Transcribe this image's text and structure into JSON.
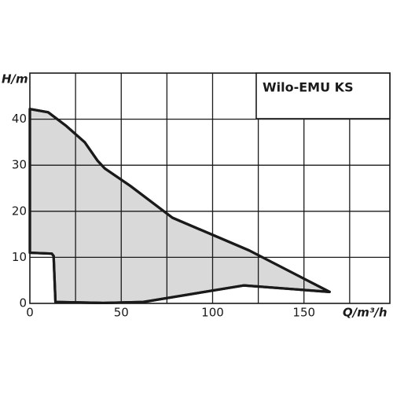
{
  "chart_data": {
    "type": "area",
    "title": "Wilo-EMU KS",
    "x_label": "Q/m³/h",
    "y_label": "H/m",
    "xlim": [
      0,
      197
    ],
    "ylim": [
      0,
      50
    ],
    "xticks": [
      0,
      50,
      100,
      150
    ],
    "yticks": [
      0,
      10,
      20,
      30,
      40
    ],
    "xgrid": [
      25,
      50,
      75,
      100,
      125,
      150,
      175
    ],
    "ygrid": [
      10,
      20,
      30,
      40
    ],
    "series": [
      {
        "name": "Wilo-EMU KS",
        "color": "#d9d9d9",
        "x": [
          0,
          10,
          20,
          30,
          37,
          41,
          55,
          78,
          120,
          164,
          117,
          62,
          40,
          14,
          13,
          12,
          0
        ],
        "values": [
          42.2,
          41.5,
          38.5,
          35,
          31,
          29.3,
          25.5,
          18.6,
          11.5,
          2.5,
          3.9,
          0.3,
          0.1,
          0.3,
          10.3,
          10.8,
          11
        ]
      }
    ]
  }
}
